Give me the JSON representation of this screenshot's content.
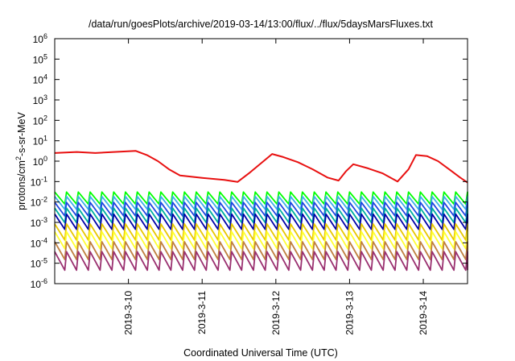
{
  "chart_data": {
    "type": "line",
    "title": "/data/run/goesPlots/archive/2019-03-14/13:00/flux/../flux/5daysMarsFluxes.txt",
    "xlabel": "Coordinated Universal Time (UTC)",
    "ylabel": {
      "pre": "protons/cm",
      "sup": "2",
      "post": "-s-sr-MeV"
    },
    "y_scale": "log",
    "ylim_exponents": [
      -6,
      6
    ],
    "y_tick_base": "10",
    "y_tick_exponents": [
      "-6",
      "-5",
      "-4",
      "-3",
      "-2",
      "-1",
      "0",
      "1",
      "2",
      "3",
      "4",
      "5",
      "6"
    ],
    "x_range_days": [
      "2019-03-09",
      "2019-03-14"
    ],
    "x_ticks": [
      "2019-3-10",
      "2019-3-11",
      "2019-3-12",
      "2019-3-13",
      "2019-3-14"
    ],
    "grid": false,
    "legend": "none",
    "series": [
      {
        "color": "#e81010",
        "values_log10": [
          [
            9.0,
            0.4
          ],
          [
            9.3,
            0.45
          ],
          [
            9.55,
            0.4
          ],
          [
            9.8,
            0.45
          ],
          [
            10.1,
            0.5
          ],
          [
            10.25,
            0.3
          ],
          [
            10.4,
            0.0
          ],
          [
            10.55,
            -0.4
          ],
          [
            10.7,
            -0.7
          ],
          [
            11.0,
            -0.82
          ],
          [
            11.3,
            -0.92
          ],
          [
            11.48,
            -1.02
          ],
          [
            11.65,
            -0.55
          ],
          [
            11.8,
            -0.1
          ],
          [
            11.95,
            0.35
          ],
          [
            12.1,
            0.2
          ],
          [
            12.3,
            -0.05
          ],
          [
            12.5,
            -0.4
          ],
          [
            12.7,
            -0.8
          ],
          [
            12.85,
            -0.95
          ],
          [
            12.95,
            -0.5
          ],
          [
            13.05,
            -0.15
          ],
          [
            13.1,
            -0.2
          ],
          [
            13.25,
            -0.35
          ],
          [
            13.45,
            -0.6
          ],
          [
            13.65,
            -1.0
          ],
          [
            13.8,
            -0.4
          ],
          [
            13.9,
            0.3
          ],
          [
            14.05,
            0.25
          ],
          [
            14.2,
            0.0
          ],
          [
            14.35,
            -0.4
          ],
          [
            14.5,
            -0.8
          ],
          [
            14.6,
            -1.05
          ]
        ]
      },
      {
        "color": "#00ff00",
        "values_log10": [
          [
            9.0,
            -1.72
          ],
          [
            14.6,
            -1.72
          ]
        ]
      },
      {
        "color": "#3db0e8",
        "values_log10": [
          [
            9.0,
            -1.95
          ],
          [
            14.6,
            -1.95
          ]
        ]
      },
      {
        "color": "#1f45e0",
        "values_log10": [
          [
            9.0,
            -2.25
          ],
          [
            14.6,
            -2.25
          ]
        ]
      },
      {
        "color": "#00b0a0",
        "values_log10": [
          [
            9.0,
            -2.55
          ],
          [
            14.6,
            -2.55
          ]
        ]
      },
      {
        "color": "#0000a8",
        "values_log10": [
          [
            9.0,
            -2.85
          ],
          [
            14.6,
            -2.85
          ]
        ]
      },
      {
        "color": "#e8c800",
        "values_log10": [
          [
            9.0,
            -3.35
          ],
          [
            14.6,
            -3.35
          ]
        ]
      },
      {
        "color": "#ffff30",
        "values_log10": [
          [
            9.0,
            -3.75
          ],
          [
            14.6,
            -3.75
          ]
        ]
      },
      {
        "color": "#c08040",
        "values_log10": [
          [
            9.0,
            -4.25
          ],
          [
            14.6,
            -4.25
          ]
        ]
      },
      {
        "color": "#9a3070",
        "values_log10": [
          [
            9.0,
            -4.75
          ],
          [
            14.6,
            -4.75
          ]
        ]
      }
    ]
  }
}
